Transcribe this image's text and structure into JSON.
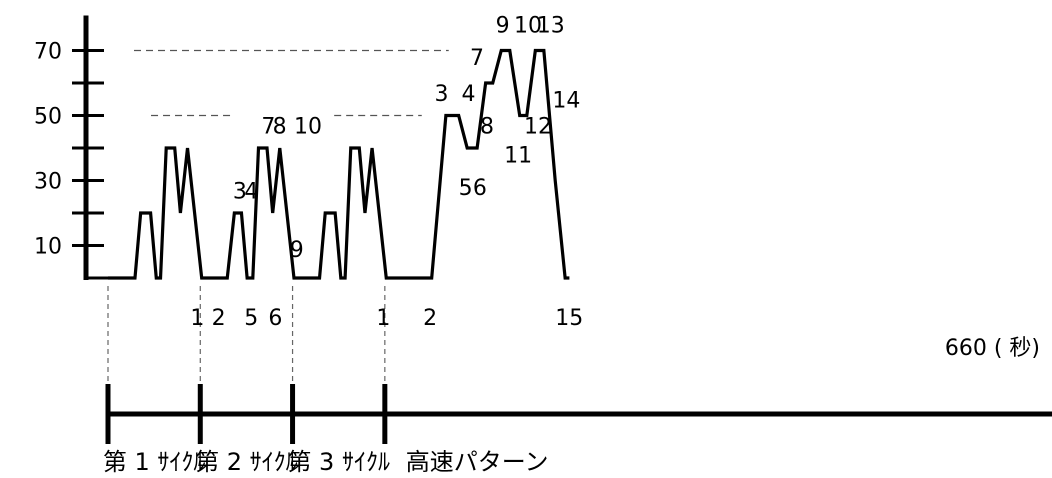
{
  "chart_data": {
    "type": "line",
    "title": "",
    "xlabel": "",
    "ylabel": "",
    "ylim": [
      0,
      78
    ],
    "xlim": [
      0,
      660
    ],
    "y_ticks": [
      10,
      20,
      30,
      40,
      50,
      60,
      70
    ],
    "y_tick_labels": [
      "10",
      "30",
      "50",
      "70"
    ],
    "x_end_label": "660 ( 秒)",
    "color": "#000000",
    "series": [
      {
        "values": [
          [
            0,
            0
          ],
          [
            11,
            0
          ],
          [
            19,
            0
          ],
          [
            23,
            20
          ],
          [
            30,
            20
          ],
          [
            34,
            0
          ],
          [
            37,
            0
          ],
          [
            41,
            40
          ],
          [
            47,
            40
          ],
          [
            51,
            20
          ],
          [
            56,
            40
          ],
          [
            66,
            0
          ],
          [
            77,
            0
          ],
          [
            84,
            0
          ],
          [
            89,
            20
          ],
          [
            94,
            20
          ],
          [
            98,
            0
          ],
          [
            102,
            0
          ],
          [
            106,
            40
          ],
          [
            112,
            40
          ],
          [
            116,
            20
          ],
          [
            121,
            40
          ],
          [
            131,
            0
          ],
          [
            142,
            0
          ],
          [
            149,
            0
          ],
          [
            153,
            20
          ],
          [
            160,
            20
          ],
          [
            164,
            0
          ],
          [
            167,
            0
          ],
          [
            171,
            40
          ],
          [
            177,
            40
          ],
          [
            181,
            20
          ],
          [
            186,
            40
          ],
          [
            196,
            0
          ],
          [
            207,
            0
          ],
          [
            228,
            0
          ],
          [
            238,
            50
          ],
          [
            247,
            50
          ],
          [
            253,
            40
          ],
          [
            260,
            40
          ],
          [
            266,
            60
          ],
          [
            271,
            60
          ],
          [
            277,
            70
          ],
          [
            283,
            70
          ],
          [
            290,
            50
          ],
          [
            295,
            50
          ],
          [
            301,
            70
          ],
          [
            307,
            70
          ],
          [
            315,
            30
          ],
          [
            322,
            0
          ],
          [
            325,
            0
          ]
        ]
      }
    ],
    "reference_lines": [
      {
        "y": 70,
        "x_start": 0,
        "x_end": 240
      },
      {
        "y": 50,
        "x_start": 12,
        "x_end": 87
      },
      {
        "y": 50,
        "x_start": 141,
        "x_end": 221
      }
    ],
    "cycle_boundaries": [
      0,
      65,
      130,
      195,
      325
    ],
    "annotations": [
      {
        "text": "1",
        "x": 58,
        "y": -12
      },
      {
        "text": "2",
        "x": 73,
        "y": -12
      },
      {
        "text": "3",
        "x": 88,
        "y": 27
      },
      {
        "text": "4",
        "x": 96,
        "y": 27
      },
      {
        "text": "5",
        "x": 96,
        "y": -12
      },
      {
        "text": "6",
        "x": 113,
        "y": -12
      },
      {
        "text": "7",
        "x": 108,
        "y": 47
      },
      {
        "text": "8",
        "x": 116,
        "y": 47
      },
      {
        "text": "9",
        "x": 128,
        "y": 9
      },
      {
        "text": "10",
        "x": 131,
        "y": 47
      },
      {
        "text": "1",
        "x": 189,
        "y": -12
      },
      {
        "text": "2",
        "x": 222,
        "y": -12
      },
      {
        "text": "3",
        "x": 230,
        "y": 57
      },
      {
        "text": "4",
        "x": 249,
        "y": 57
      },
      {
        "text": "5",
        "x": 247,
        "y": 28
      },
      {
        "text": "6",
        "x": 257,
        "y": 28
      },
      {
        "text": "7",
        "x": 255,
        "y": 68
      },
      {
        "text": "8",
        "x": 262,
        "y": 47
      },
      {
        "text": "9",
        "x": 273,
        "y": 78
      },
      {
        "text": "10",
        "x": 286,
        "y": 78
      },
      {
        "text": "11",
        "x": 279,
        "y": 38
      },
      {
        "text": "12",
        "x": 293,
        "y": 47
      },
      {
        "text": "13",
        "x": 302,
        "y": 78
      },
      {
        "text": "14",
        "x": 313,
        "y": 55
      },
      {
        "text": "15",
        "x": 315,
        "y": -12
      }
    ]
  },
  "segments": [
    {
      "label": "第 1 ｻｲｸﾙ"
    },
    {
      "label": "第 2 ｻｲｸﾙ"
    },
    {
      "label": "第 3 ｻｲｸﾙ"
    },
    {
      "label": "高速パターン"
    }
  ]
}
